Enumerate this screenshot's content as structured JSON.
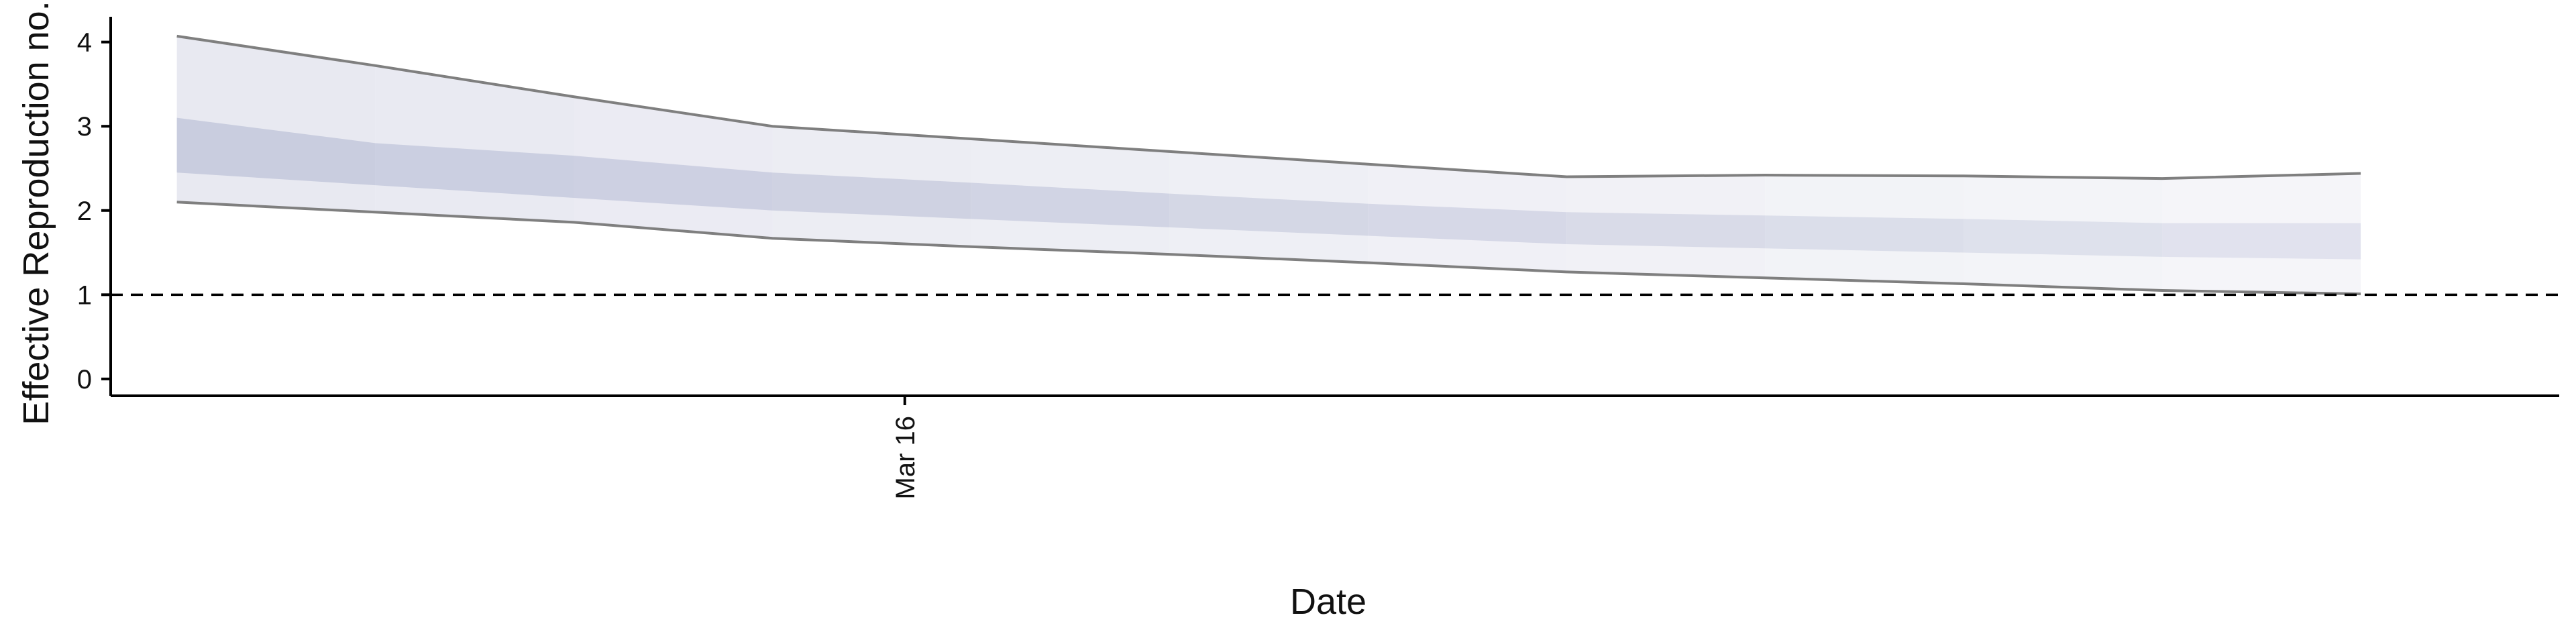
{
  "chart_data": {
    "type": "area",
    "title": "",
    "xlabel": "Date",
    "ylabel": "Effective Reproduction no.",
    "x": [
      "2020-03-05",
      "2020-03-08",
      "2020-03-11",
      "2020-03-14",
      "2020-03-17",
      "2020-03-20",
      "2020-03-23",
      "2020-03-26",
      "2020-03-29",
      "2020-04-01",
      "2020-04-04",
      "2020-04-07"
    ],
    "xlim": [
      "2020-03-04",
      "2020-04-10"
    ],
    "x_ticks": [
      {
        "date": "2020-03-16",
        "label": "Mar 16"
      }
    ],
    "ylim": [
      -0.2,
      4.3
    ],
    "y_ticks": [
      0,
      1,
      2,
      3,
      4
    ],
    "reference_line": {
      "y": 1,
      "style": "dashed"
    },
    "series": [
      {
        "upper": [
          4.07,
          3.72,
          3.35,
          3.0,
          2.85,
          2.7,
          2.55,
          2.4,
          2.42,
          2.41,
          2.38,
          2.44
        ]
      },
      {
        "lower": [
          2.1,
          1.98,
          1.86,
          1.67,
          1.57,
          1.48,
          1.38,
          1.27,
          1.2,
          1.13,
          1.05,
          1.01
        ]
      },
      {
        "upper": [
          3.1,
          2.8,
          2.65,
          2.45,
          2.33,
          2.2,
          2.08,
          1.98,
          1.94,
          1.9,
          1.85,
          1.85
        ]
      },
      {
        "lower": [
          2.45,
          2.3,
          2.15,
          2.0,
          1.9,
          1.8,
          1.7,
          1.6,
          1.55,
          1.5,
          1.45,
          1.42
        ]
      }
    ],
    "colors": {
      "outer_band": "#e8e9f1",
      "inner_band": "#c9cddf",
      "outline": "#7f7f7f",
      "axis": "#000000"
    },
    "grid": false,
    "legend": "none"
  }
}
